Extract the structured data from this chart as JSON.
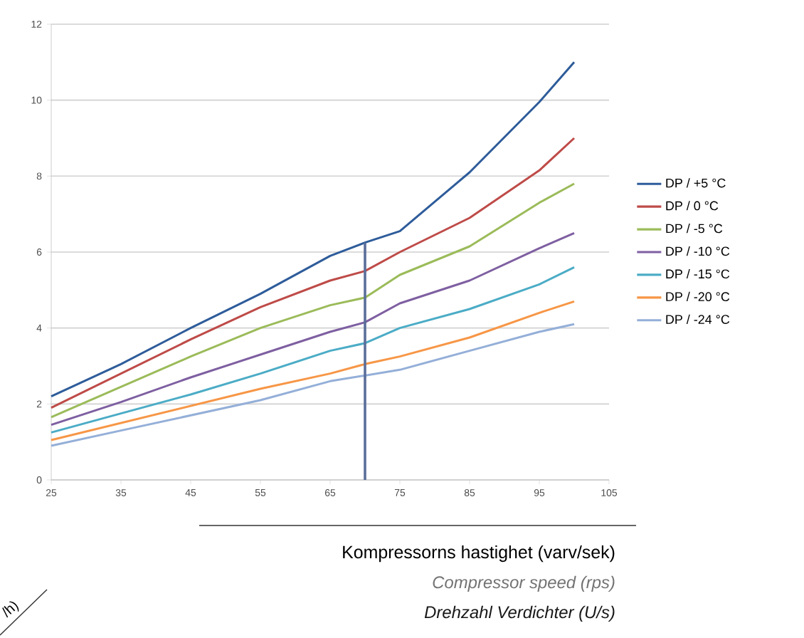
{
  "chart_data": {
    "type": "line",
    "xlabel": "Kompressorns hastighet (varv/sek)",
    "annotations": [
      "Compressor speed (rps)",
      "Drehzahl Verdichter (U/s)",
      "/h)"
    ],
    "x": [
      25,
      35,
      45,
      55,
      65,
      70,
      75,
      85,
      95,
      100
    ],
    "xlim": [
      25,
      105
    ],
    "xticks": [
      25,
      35,
      45,
      55,
      65,
      75,
      85,
      95,
      105
    ],
    "ylim": [
      0,
      12
    ],
    "yticks": [
      0,
      2,
      4,
      6,
      8,
      10,
      12
    ],
    "grid": "y",
    "legend": "right",
    "marker": "none",
    "line_style": "solid",
    "series": [
      {
        "name": "DP / +5 °C",
        "color": "#2e5c9a",
        "values": [
          2.2,
          3.05,
          4.0,
          4.9,
          5.9,
          6.25,
          6.55,
          8.1,
          9.95,
          11.0
        ]
      },
      {
        "name": "DP / 0 °C",
        "color": "#be4b48",
        "values": [
          1.9,
          2.8,
          3.7,
          4.55,
          5.25,
          5.5,
          6.0,
          6.9,
          8.15,
          9.0
        ]
      },
      {
        "name": "DP / -5 °C",
        "color": "#9bbb59",
        "values": [
          1.65,
          2.45,
          3.25,
          4.0,
          4.6,
          4.8,
          5.4,
          6.15,
          7.3,
          7.8
        ]
      },
      {
        "name": "DP / -10 °C",
        "color": "#7e5fa1",
        "values": [
          1.45,
          2.05,
          2.7,
          3.3,
          3.9,
          4.15,
          4.65,
          5.25,
          6.1,
          6.5
        ]
      },
      {
        "name": "DP / -15 °C",
        "color": "#4bacc6",
        "values": [
          1.25,
          1.75,
          2.25,
          2.8,
          3.4,
          3.6,
          4.0,
          4.5,
          5.15,
          5.6
        ]
      },
      {
        "name": "DP / -20 °C",
        "color": "#f79646",
        "values": [
          1.05,
          1.5,
          1.95,
          2.4,
          2.8,
          3.05,
          3.25,
          3.75,
          4.4,
          4.7
        ]
      },
      {
        "name": "DP / -24 °C",
        "color": "#94afd8",
        "values": [
          0.9,
          1.3,
          1.7,
          2.1,
          2.6,
          2.75,
          2.9,
          3.4,
          3.9,
          4.1
        ]
      },
      {
        "color": "#5a6e9a",
        "x": [
          70,
          70
        ],
        "values": [
          0,
          6.25
        ]
      }
    ]
  }
}
